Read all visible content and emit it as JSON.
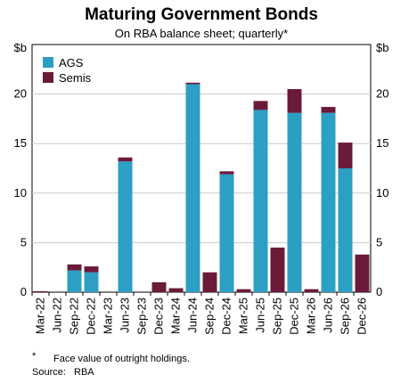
{
  "chart_data": {
    "type": "bar",
    "stacked": true,
    "title": "Maturing Government Bonds",
    "subtitle": "On RBA balance sheet; quarterly*",
    "unit_left": "$b",
    "unit_right": "$b",
    "ylim": [
      0,
      25
    ],
    "yticks": [
      0,
      5,
      10,
      15,
      20
    ],
    "grid": true,
    "legend_position": "top-left",
    "categories": [
      "Mar-22",
      "Jun-22",
      "Sep-22",
      "Dec-22",
      "Mar-23",
      "Jun-23",
      "Sep-23",
      "Dec-23",
      "Mar-24",
      "Jun-24",
      "Sep-24",
      "Dec-24",
      "Mar-25",
      "Jun-25",
      "Sep-25",
      "Dec-25",
      "Mar-26",
      "Jun-26",
      "Sep-26",
      "Dec-26"
    ],
    "series": [
      {
        "name": "AGS",
        "color": "#2b9fc4",
        "values": [
          0,
          0,
          2.2,
          2.0,
          0,
          13.2,
          0,
          0,
          0,
          21.0,
          0,
          11.9,
          0,
          18.4,
          0,
          18.1,
          0,
          18.1,
          12.5,
          0
        ]
      },
      {
        "name": "Semis",
        "color": "#6b1a3a",
        "values": [
          0.1,
          0,
          0.6,
          0.6,
          0,
          0.4,
          0,
          1.0,
          0.4,
          0.15,
          2.0,
          0.3,
          0.3,
          0.9,
          4.5,
          2.4,
          0.3,
          0.6,
          2.6,
          3.8
        ]
      }
    ]
  },
  "footnote": {
    "marker": "*",
    "text": "Face value of outright holdings.",
    "source_label": "Source:",
    "source_value": "RBA"
  }
}
